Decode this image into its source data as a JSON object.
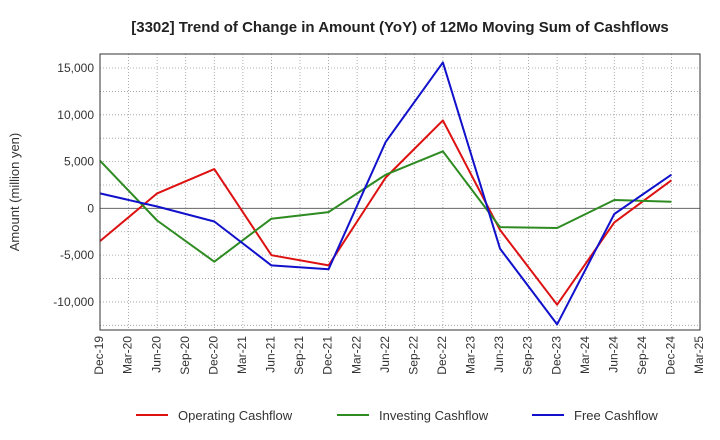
{
  "chart_data": {
    "type": "line",
    "title": "[3302]  Trend of Change in Amount (YoY) of 12Mo Moving Sum of Cashflows",
    "xlabel": "",
    "ylabel": "Amount (million yen)",
    "ylim": [
      -13000,
      16500
    ],
    "yticks": [
      15000,
      10000,
      5000,
      0,
      -5000,
      -10000
    ],
    "ytick_labels": [
      "15,000",
      "10,000",
      "5,000",
      "0",
      "-5,000",
      "-10,000"
    ],
    "grid": true,
    "legend_position": "bottom",
    "categories": [
      "Dec-19",
      "Mar-20",
      "Jun-20",
      "Sep-20",
      "Dec-20",
      "Mar-21",
      "Jun-21",
      "Sep-21",
      "Dec-21",
      "Mar-22",
      "Jun-22",
      "Sep-22",
      "Dec-22",
      "Mar-23",
      "Jun-23",
      "Sep-23",
      "Dec-23",
      "Mar-24",
      "Jun-24",
      "Sep-24",
      "Dec-24",
      "Mar-25"
    ],
    "series": [
      {
        "name": "Operating Cashflow",
        "color": "#dd1111",
        "points": [
          [
            0,
            -3500
          ],
          [
            2,
            1600
          ],
          [
            4,
            4200
          ],
          [
            6,
            -5000
          ],
          [
            8,
            -6100
          ],
          [
            10,
            3300
          ],
          [
            12,
            9400
          ],
          [
            14,
            -2300
          ],
          [
            16,
            -10300
          ],
          [
            18,
            -1500
          ],
          [
            20,
            3000
          ]
        ]
      },
      {
        "name": "Investing Cashflow",
        "color": "#2e8b22",
        "points": [
          [
            0,
            5100
          ],
          [
            2,
            -1300
          ],
          [
            4,
            -5700
          ],
          [
            6,
            -1100
          ],
          [
            8,
            -400
          ],
          [
            10,
            3600
          ],
          [
            12,
            6100
          ],
          [
            14,
            -2000
          ],
          [
            16,
            -2100
          ],
          [
            18,
            900
          ],
          [
            20,
            700
          ]
        ]
      },
      {
        "name": "Free Cashflow",
        "color": "#1111cc",
        "points": [
          [
            0,
            1600
          ],
          [
            2,
            200
          ],
          [
            4,
            -1400
          ],
          [
            6,
            -6100
          ],
          [
            8,
            -6500
          ],
          [
            10,
            7100
          ],
          [
            12,
            15600
          ],
          [
            14,
            -4300
          ],
          [
            16,
            -12400
          ],
          [
            18,
            -600
          ],
          [
            20,
            3600
          ]
        ]
      }
    ]
  }
}
